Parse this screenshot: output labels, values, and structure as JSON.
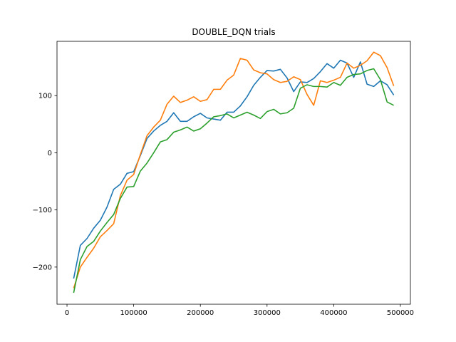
{
  "chart_data": {
    "type": "line",
    "title": "DOUBLE_DQN trials",
    "xlabel": "",
    "ylabel": "",
    "xlim": [
      -15000,
      515000
    ],
    "ylim": [
      -265,
      195
    ],
    "xticks": [
      0,
      100000,
      200000,
      300000,
      400000,
      500000
    ],
    "xtick_labels": [
      "0",
      "100000",
      "200000",
      "300000",
      "400000",
      "500000"
    ],
    "yticks": [
      -200,
      -100,
      0,
      100
    ],
    "ytick_labels": [
      "−200",
      "−100",
      "0",
      "100"
    ],
    "grid": false,
    "legend": "none",
    "x": [
      10000,
      20000,
      30000,
      40000,
      50000,
      60000,
      70000,
      80000,
      90000,
      100000,
      110000,
      120000,
      130000,
      140000,
      150000,
      160000,
      170000,
      180000,
      190000,
      200000,
      210000,
      220000,
      230000,
      240000,
      250000,
      260000,
      270000,
      280000,
      290000,
      300000,
      310000,
      320000,
      330000,
      340000,
      350000,
      360000,
      370000,
      380000,
      390000,
      400000,
      410000,
      420000,
      430000,
      440000,
      450000,
      460000,
      470000,
      480000,
      490000
    ],
    "series": [
      {
        "color": "#1f77b4",
        "values": [
          -220,
          -162,
          -150,
          -132,
          -118,
          -95,
          -64,
          -55,
          -36,
          -33,
          -5,
          25,
          38,
          48,
          55,
          70,
          55,
          55,
          63,
          69,
          61,
          59,
          57,
          71,
          71,
          82,
          98,
          118,
          132,
          144,
          143,
          146,
          131,
          107,
          124,
          123,
          130,
          142,
          156,
          148,
          162,
          157,
          132,
          159,
          120,
          116,
          126,
          119,
          101
        ]
      },
      {
        "color": "#ff7f0e",
        "values": [
          -237,
          -200,
          -183,
          -167,
          -147,
          -136,
          -124,
          -75,
          -48,
          -38,
          -3,
          30,
          45,
          57,
          85,
          99,
          88,
          92,
          98,
          90,
          93,
          111,
          111,
          127,
          136,
          165,
          162,
          145,
          140,
          138,
          128,
          123,
          125,
          133,
          128,
          102,
          83,
          126,
          123,
          127,
          132,
          157,
          148,
          153,
          161,
          176,
          170,
          149,
          117
        ]
      },
      {
        "color": "#2ca02c",
        "values": [
          -245,
          -187,
          -164,
          -155,
          -137,
          -122,
          -108,
          -80,
          -60,
          -59,
          -32,
          -18,
          0,
          19,
          23,
          36,
          40,
          45,
          38,
          42,
          52,
          63,
          65,
          68,
          61,
          66,
          71,
          66,
          60,
          72,
          76,
          68,
          70,
          78,
          113,
          119,
          116,
          116,
          115,
          123,
          118,
          132,
          137,
          138,
          144,
          147,
          128,
          89,
          83
        ]
      }
    ]
  }
}
